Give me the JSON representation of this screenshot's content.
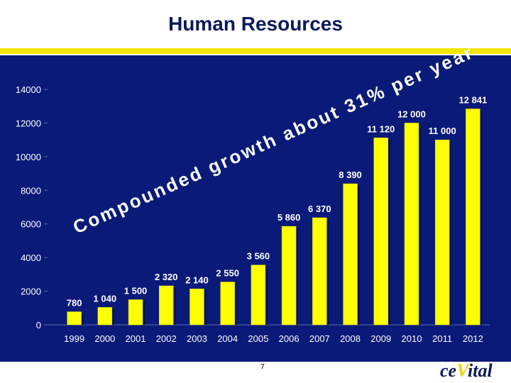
{
  "page": {
    "title": "Human Resources",
    "page_number": "7",
    "logo_prefix": "ce",
    "logo_highlight": "V",
    "logo_suffix": "ital",
    "colors": {
      "panel": "#0a1a78",
      "bar": "#ffff00",
      "text": "#ffffff",
      "annotation": "#ffffff"
    }
  },
  "chart_data": {
    "type": "bar",
    "title": "",
    "xlabel": "",
    "ylabel": "",
    "categories": [
      "1999",
      "2000",
      "2001",
      "2002",
      "2003",
      "2004",
      "2005",
      "2006",
      "2007",
      "2008",
      "2009",
      "2010",
      "2011",
      "2012"
    ],
    "values": [
      780,
      1040,
      1500,
      2320,
      2140,
      2550,
      3560,
      5860,
      6370,
      8390,
      11120,
      12000,
      11000,
      12841
    ],
    "data_labels": [
      "780",
      "1 040",
      "1 500",
      "2 320",
      "2 140",
      "2 550",
      "3 560",
      "5 860",
      "6 370",
      "8 390",
      "11 120",
      "12 000",
      "11 000",
      "12 841"
    ],
    "yticks": [
      0,
      2000,
      4000,
      6000,
      8000,
      10000,
      12000,
      14000
    ],
    "ylim": [
      0,
      14000
    ],
    "grid": false,
    "annotation": "Compounded growth about 31% per year"
  }
}
